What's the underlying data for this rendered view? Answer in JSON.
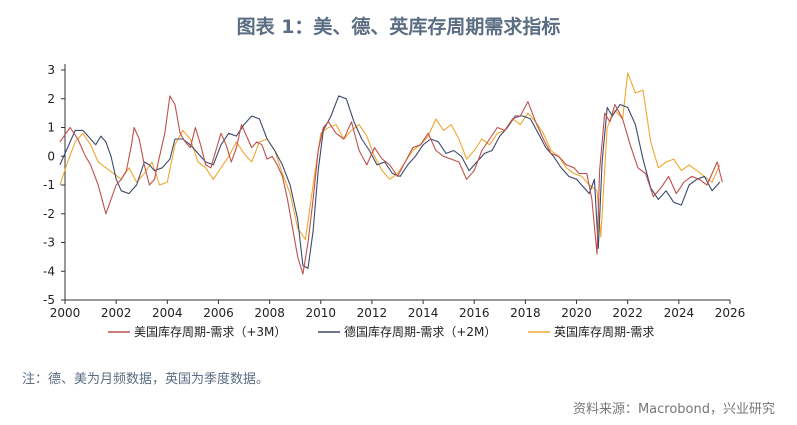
{
  "title": "图表 1：美、德、英库存周期需求指标",
  "note": "注：德、美为月频数据，英国为季度数据。",
  "source": "资料来源：Macrobond，兴业研究",
  "chart_data": {
    "type": "line",
    "title": "图表 1：美、德、英库存周期需求指标",
    "xlabel": "",
    "ylabel": "",
    "xlim": [
      2000,
      2026
    ],
    "ylim": [
      -5,
      3
    ],
    "grid": false,
    "legend_position": "bottom",
    "x_ticks": [
      2000,
      2002,
      2004,
      2006,
      2008,
      2010,
      2012,
      2014,
      2016,
      2018,
      2020,
      2022,
      2024,
      2026
    ],
    "y_ticks": [
      3,
      2,
      1,
      0,
      -1,
      -2,
      -3,
      -4,
      -5
    ],
    "series": [
      {
        "name": "美国库存周期-需求（+3M）",
        "color": "#c0504d",
        "x": [
          1999.8,
          2000.2,
          2000.5,
          2000.8,
          2001.0,
          2001.3,
          2001.6,
          2001.8,
          2002.0,
          2002.2,
          2002.4,
          2002.6,
          2002.7,
          2002.9,
          2003.1,
          2003.3,
          2003.5,
          2003.7,
          2003.9,
          2004.1,
          2004.3,
          2004.5,
          2004.7,
          2004.9,
          2005.1,
          2005.3,
          2005.5,
          2005.7,
          2005.9,
          2006.1,
          2006.3,
          2006.5,
          2006.7,
          2006.9,
          2007.1,
          2007.3,
          2007.5,
          2007.7,
          2007.9,
          2008.1,
          2008.3,
          2008.5,
          2008.7,
          2008.9,
          2009.1,
          2009.3,
          2009.5,
          2009.7,
          2009.9,
          2010.1,
          2010.3,
          2010.6,
          2010.9,
          2011.2,
          2011.5,
          2011.8,
          2012.1,
          2012.4,
          2012.7,
          2013.0,
          2013.3,
          2013.6,
          2013.9,
          2014.2,
          2014.5,
          2014.8,
          2015.1,
          2015.4,
          2015.7,
          2016.0,
          2016.3,
          2016.6,
          2016.9,
          2017.2,
          2017.5,
          2017.8,
          2018.1,
          2018.4,
          2018.7,
          2019.0,
          2019.3,
          2019.6,
          2019.9,
          2020.1,
          2020.4,
          2020.6,
          2020.8,
          2020.9,
          2021.1,
          2021.3,
          2021.5,
          2021.8,
          2022.1,
          2022.4,
          2022.7,
          2023.0,
          2023.3,
          2023.6,
          2023.9,
          2024.2,
          2024.5,
          2024.8,
          2025.1,
          2025.3,
          2025.5,
          2025.7
        ],
        "y": [
          0.5,
          1.0,
          0.6,
          0.0,
          -0.3,
          -1.0,
          -2.0,
          -1.5,
          -1.0,
          -0.8,
          -0.5,
          0.4,
          1.0,
          0.6,
          -0.3,
          -1.0,
          -0.8,
          0.0,
          0.8,
          2.1,
          1.8,
          0.8,
          0.5,
          0.3,
          1.0,
          0.4,
          -0.3,
          -0.4,
          0.2,
          0.8,
          0.4,
          -0.2,
          0.3,
          1.1,
          0.7,
          0.3,
          0.5,
          0.4,
          -0.1,
          0.0,
          -0.3,
          -0.7,
          -1.5,
          -2.5,
          -3.5,
          -4.1,
          -3.0,
          -1.5,
          0.2,
          1.0,
          1.2,
          0.8,
          0.6,
          1.2,
          0.2,
          -0.3,
          0.3,
          -0.1,
          -0.3,
          -0.7,
          -0.2,
          0.3,
          0.4,
          0.8,
          0.2,
          0.0,
          -0.1,
          -0.2,
          -0.8,
          -0.5,
          0.2,
          0.6,
          1.0,
          0.9,
          1.3,
          1.4,
          1.9,
          1.2,
          0.6,
          0.1,
          0.0,
          -0.3,
          -0.4,
          -0.6,
          -0.6,
          -1.5,
          -3.4,
          -0.5,
          1.5,
          1.2,
          1.8,
          1.3,
          0.4,
          -0.4,
          -0.6,
          -1.4,
          -1.1,
          -0.7,
          -1.3,
          -0.9,
          -0.7,
          -0.8,
          -1.0,
          -0.6,
          -0.2,
          -0.9
        ]
      },
      {
        "name": "德国库存周期-需求（+2M）",
        "color": "#3b4a6b",
        "x": [
          1999.8,
          2000.1,
          2000.4,
          2000.7,
          2001.0,
          2001.2,
          2001.4,
          2001.6,
          2001.8,
          2002.0,
          2002.2,
          2002.5,
          2002.8,
          2003.1,
          2003.3,
          2003.5,
          2003.8,
          2004.1,
          2004.3,
          2004.6,
          2004.9,
          2005.2,
          2005.5,
          2005.8,
          2006.1,
          2006.4,
          2006.7,
          2007.0,
          2007.3,
          2007.6,
          2007.9,
          2008.2,
          2008.5,
          2008.8,
          2009.1,
          2009.3,
          2009.5,
          2009.7,
          2009.9,
          2010.1,
          2010.4,
          2010.7,
          2011.0,
          2011.3,
          2011.6,
          2011.9,
          2012.2,
          2012.5,
          2012.8,
          2013.1,
          2013.4,
          2013.7,
          2014.0,
          2014.3,
          2014.6,
          2014.9,
          2015.2,
          2015.5,
          2015.8,
          2016.1,
          2016.4,
          2016.7,
          2017.0,
          2017.3,
          2017.6,
          2017.9,
          2018.2,
          2018.5,
          2018.8,
          2019.1,
          2019.4,
          2019.7,
          2020.0,
          2020.3,
          2020.5,
          2020.7,
          2020.85,
          2021.0,
          2021.2,
          2021.4,
          2021.7,
          2022.0,
          2022.3,
          2022.6,
          2022.9,
          2023.2,
          2023.5,
          2023.8,
          2024.1,
          2024.4,
          2024.7,
          2025.0,
          2025.3,
          2025.6
        ],
        "y": [
          -0.3,
          0.3,
          0.9,
          0.9,
          0.6,
          0.4,
          0.7,
          0.5,
          0.0,
          -0.8,
          -1.2,
          -1.3,
          -1.0,
          -0.2,
          -0.3,
          -0.5,
          -0.4,
          -0.1,
          0.6,
          0.6,
          0.4,
          0.1,
          -0.2,
          -0.3,
          0.4,
          0.8,
          0.7,
          1.1,
          1.4,
          1.3,
          0.6,
          0.2,
          -0.3,
          -1.0,
          -2.2,
          -3.8,
          -3.9,
          -2.6,
          -0.5,
          0.9,
          1.4,
          2.1,
          2.0,
          1.2,
          0.6,
          0.2,
          -0.3,
          -0.2,
          -0.6,
          -0.7,
          -0.3,
          0.0,
          0.4,
          0.6,
          0.5,
          0.1,
          0.2,
          0.0,
          -0.5,
          -0.2,
          0.1,
          0.2,
          0.7,
          1.0,
          1.4,
          1.4,
          1.3,
          0.8,
          0.3,
          0.0,
          -0.4,
          -0.7,
          -0.8,
          -1.1,
          -1.3,
          -0.8,
          -3.2,
          -0.2,
          1.7,
          1.4,
          1.8,
          1.7,
          1.1,
          -0.1,
          -1.1,
          -1.5,
          -1.2,
          -1.6,
          -1.7,
          -1.0,
          -0.8,
          -0.7,
          -1.2,
          -0.9
        ]
      },
      {
        "name": "英国库存周期-需求",
        "color": "#f0a830",
        "x": [
          1999.8,
          2000.1,
          2000.4,
          2000.7,
          2001.0,
          2001.3,
          2001.6,
          2001.9,
          2002.2,
          2002.5,
          2002.8,
          2003.1,
          2003.4,
          2003.7,
          2004.0,
          2004.3,
          2004.6,
          2004.9,
          2005.2,
          2005.5,
          2005.8,
          2006.1,
          2006.4,
          2006.7,
          2007.0,
          2007.3,
          2007.6,
          2007.9,
          2008.2,
          2008.5,
          2008.8,
          2009.1,
          2009.4,
          2009.7,
          2010.0,
          2010.3,
          2010.6,
          2010.9,
          2011.2,
          2011.5,
          2011.8,
          2012.1,
          2012.4,
          2012.7,
          2013.0,
          2013.3,
          2013.6,
          2013.9,
          2014.2,
          2014.5,
          2014.8,
          2015.1,
          2015.4,
          2015.7,
          2016.0,
          2016.3,
          2016.6,
          2016.9,
          2017.2,
          2017.5,
          2017.8,
          2018.1,
          2018.4,
          2018.7,
          2019.0,
          2019.3,
          2019.6,
          2019.9,
          2020.2,
          2020.5,
          2020.8,
          2020.95,
          2021.2,
          2021.5,
          2021.8,
          2022.0,
          2022.3,
          2022.6,
          2022.9,
          2023.2,
          2023.5,
          2023.8,
          2024.1,
          2024.4,
          2024.7,
          2025.0,
          2025.3,
          2025.6
        ],
        "y": [
          -1.0,
          -0.2,
          0.5,
          0.8,
          0.4,
          -0.2,
          -0.4,
          -0.6,
          -0.8,
          -0.4,
          -0.9,
          -0.6,
          -0.2,
          -1.0,
          -0.9,
          0.4,
          0.9,
          0.6,
          -0.2,
          -0.4,
          -0.8,
          -0.4,
          0.0,
          0.5,
          0.1,
          -0.2,
          0.5,
          0.6,
          0.2,
          -0.6,
          -1.3,
          -2.5,
          -2.9,
          -1.0,
          0.8,
          1.0,
          1.1,
          0.6,
          0.9,
          1.1,
          0.7,
          0.0,
          -0.5,
          -0.8,
          -0.6,
          -0.2,
          0.2,
          0.4,
          0.7,
          1.3,
          0.9,
          1.1,
          0.6,
          -0.1,
          0.2,
          0.6,
          0.4,
          0.8,
          0.9,
          1.3,
          1.1,
          1.5,
          1.2,
          0.8,
          0.2,
          0.0,
          -0.4,
          -0.6,
          -0.7,
          -1.0,
          -1.2,
          -2.8,
          1.0,
          1.6,
          1.3,
          2.9,
          2.2,
          2.3,
          0.5,
          -0.4,
          -0.2,
          -0.1,
          -0.5,
          -0.3,
          -0.5,
          -0.7,
          -0.9,
          -0.3
        ]
      }
    ]
  }
}
